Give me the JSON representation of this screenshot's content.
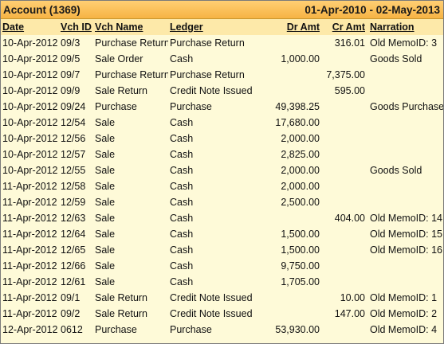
{
  "header": {
    "title": "Account (1369)",
    "period": "01-Apr-2010 - 02-May-2013"
  },
  "columns": {
    "date": "Date",
    "vch_id": "Vch ID",
    "vch_name": "Vch Name",
    "ledger": "Ledger",
    "dr_amt": "Dr Amt",
    "cr_amt": "Cr Amt",
    "narration": "Narration"
  },
  "rows": [
    {
      "date": "10-Apr-2012",
      "vch_id": "09/3",
      "vch_name": "Purchase Return",
      "ledger": "Purchase Return",
      "dr": "",
      "cr": "316.01",
      "narration": "Old MemoID: 3"
    },
    {
      "date": "10-Apr-2012",
      "vch_id": "09/5",
      "vch_name": "Sale Order",
      "ledger": "Cash",
      "dr": "1,000.00",
      "cr": "",
      "narration": "Goods Sold"
    },
    {
      "date": "10-Apr-2012",
      "vch_id": "09/7",
      "vch_name": "Purchase Return",
      "ledger": "Purchase Return",
      "dr": "",
      "cr": "7,375.00",
      "narration": ""
    },
    {
      "date": "10-Apr-2012",
      "vch_id": "09/9",
      "vch_name": "Sale Return",
      "ledger": "Credit Note Issued",
      "dr": "",
      "cr": "595.00",
      "narration": ""
    },
    {
      "date": "10-Apr-2012",
      "vch_id": "09/24",
      "vch_name": "Purchase",
      "ledger": "Purchase",
      "dr": "49,398.25",
      "cr": "",
      "narration": "Goods Purchased"
    },
    {
      "date": "10-Apr-2012",
      "vch_id": "12/54",
      "vch_name": "Sale",
      "ledger": "Cash",
      "dr": "17,680.00",
      "cr": "",
      "narration": ""
    },
    {
      "date": "10-Apr-2012",
      "vch_id": "12/56",
      "vch_name": "Sale",
      "ledger": "Cash",
      "dr": "2,000.00",
      "cr": "",
      "narration": ""
    },
    {
      "date": "10-Apr-2012",
      "vch_id": "12/57",
      "vch_name": "Sale",
      "ledger": "Cash",
      "dr": "2,825.00",
      "cr": "",
      "narration": ""
    },
    {
      "date": "10-Apr-2012",
      "vch_id": "12/55",
      "vch_name": "Sale",
      "ledger": "Cash",
      "dr": "2,000.00",
      "cr": "",
      "narration": "Goods Sold"
    },
    {
      "date": "11-Apr-2012",
      "vch_id": "12/58",
      "vch_name": "Sale",
      "ledger": "Cash",
      "dr": "2,000.00",
      "cr": "",
      "narration": ""
    },
    {
      "date": "11-Apr-2012",
      "vch_id": "12/59",
      "vch_name": "Sale",
      "ledger": "Cash",
      "dr": "2,500.00",
      "cr": "",
      "narration": ""
    },
    {
      "date": "11-Apr-2012",
      "vch_id": "12/63",
      "vch_name": "Sale",
      "ledger": "Cash",
      "dr": "",
      "cr": "404.00",
      "narration": "Old MemoID: 14"
    },
    {
      "date": "11-Apr-2012",
      "vch_id": "12/64",
      "vch_name": "Sale",
      "ledger": "Cash",
      "dr": "1,500.00",
      "cr": "",
      "narration": "Old MemoID: 15"
    },
    {
      "date": "11-Apr-2012",
      "vch_id": "12/65",
      "vch_name": "Sale",
      "ledger": "Cash",
      "dr": "1,500.00",
      "cr": "",
      "narration": "Old MemoID: 16"
    },
    {
      "date": "11-Apr-2012",
      "vch_id": "12/66",
      "vch_name": "Sale",
      "ledger": "Cash",
      "dr": "9,750.00",
      "cr": "",
      "narration": ""
    },
    {
      "date": "11-Apr-2012",
      "vch_id": "12/61",
      "vch_name": "Sale",
      "ledger": "Cash",
      "dr": "1,705.00",
      "cr": "",
      "narration": ""
    },
    {
      "date": "11-Apr-2012",
      "vch_id": "09/1",
      "vch_name": "Sale Return",
      "ledger": "Credit Note Issued",
      "dr": "",
      "cr": "10.00",
      "narration": "Old MemoID: 1"
    },
    {
      "date": "11-Apr-2012",
      "vch_id": "09/2",
      "vch_name": "Sale Return",
      "ledger": "Credit Note Issued",
      "dr": "",
      "cr": "147.00",
      "narration": "Old MemoID: 2"
    },
    {
      "date": "12-Apr-2012",
      "vch_id": "0612",
      "vch_name": "Purchase",
      "ledger": "Purchase",
      "dr": "53,930.00",
      "cr": "",
      "narration": "Old MemoID: 4"
    }
  ]
}
